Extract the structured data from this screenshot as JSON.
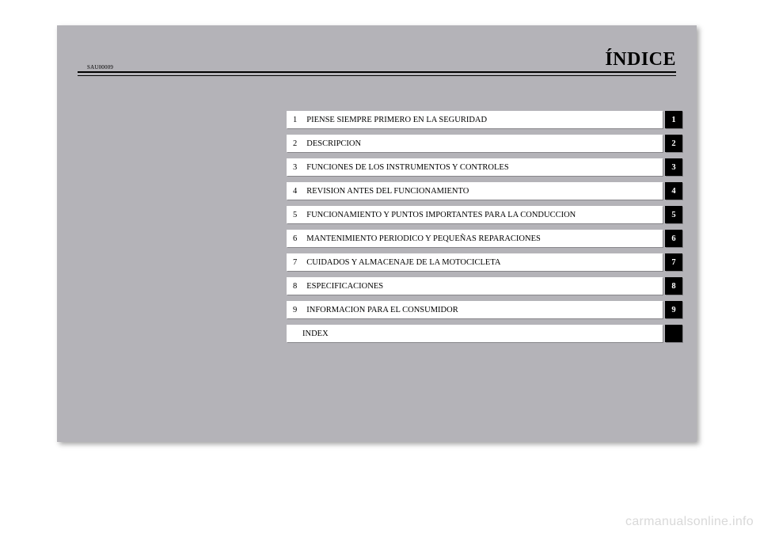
{
  "header": {
    "code": "SAU00009",
    "title": "ÍNDICE"
  },
  "toc": {
    "entries": [
      {
        "num": "1",
        "label": "PIENSE SIEMPRE PRIMERO EN LA SEGURIDAD",
        "tab": "1"
      },
      {
        "num": "2",
        "label": "DESCRIPCION",
        "tab": "2"
      },
      {
        "num": "3",
        "label": "FUNCIONES DE LOS INSTRUMENTOS Y CONTROLES",
        "tab": "3"
      },
      {
        "num": "4",
        "label": "REVISION ANTES DEL FUNCIONAMIENTO",
        "tab": "4"
      },
      {
        "num": "5",
        "label": "FUNCIONAMIENTO Y PUNTOS IMPORTANTES PARA LA CONDUCCION",
        "tab": "5"
      },
      {
        "num": "6",
        "label": "MANTENIMIENTO PERIODICO Y PEQUEÑAS REPARACIONES",
        "tab": "6"
      },
      {
        "num": "7",
        "label": "CUIDADOS Y ALMACENAJE DE LA MOTOCICLETA",
        "tab": "7"
      },
      {
        "num": "8",
        "label": "ESPECIFICACIONES",
        "tab": "8"
      },
      {
        "num": "9",
        "label": "INFORMACION PARA EL CONSUMIDOR",
        "tab": "9"
      },
      {
        "num": "",
        "label": "INDEX",
        "tab": ""
      }
    ]
  },
  "watermark": "carmanualsonline.info",
  "colors": {
    "page_bg": "#b4b3b8",
    "entry_bg": "#ffffff",
    "tab_bg": "#000000",
    "tab_fg": "#ffffff",
    "text": "#000000",
    "watermark": "#d9d9d9"
  }
}
